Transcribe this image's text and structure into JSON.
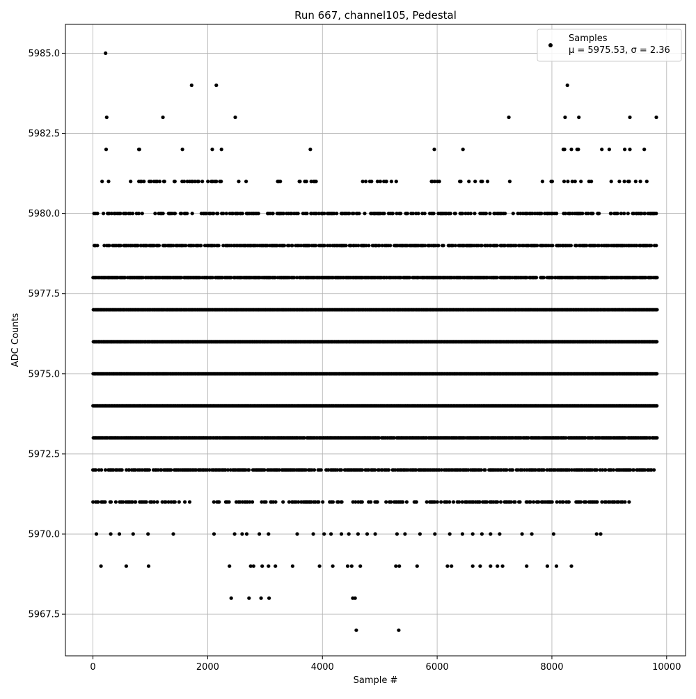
{
  "chart_data": {
    "type": "scatter",
    "title": "Run 667, channel105, Pedestal",
    "xlabel": "Sample #",
    "ylabel": "ADC Counts",
    "xlim": [
      -480,
      10330
    ],
    "ylim": [
      5966.2,
      5985.9
    ],
    "xticks": [
      0,
      2000,
      4000,
      6000,
      8000,
      10000
    ],
    "xtick_labels": [
      "0",
      "2000",
      "4000",
      "6000",
      "8000",
      "10000"
    ],
    "yticks": [
      5967.5,
      5970.0,
      5972.5,
      5975.0,
      5977.5,
      5980.0,
      5982.5,
      5985.0
    ],
    "ytick_labels": [
      "5967.5",
      "5970.0",
      "5972.5",
      "5975.0",
      "5977.5",
      "5980.0",
      "5982.5",
      "5985.0"
    ],
    "grid": true,
    "legend": {
      "placement": "upper-right",
      "series_label": "Samples",
      "stats_text": "μ = 5975.53, σ = 2.36"
    },
    "series": [
      {
        "name": "Samples",
        "color": "#000000",
        "n_samples": 9830,
        "mean": 5975.53,
        "sigma": 2.36,
        "points": [
          [
            220,
            5985
          ],
          [
            1720,
            5984
          ],
          [
            2150,
            5984
          ],
          [
            8270,
            5984
          ],
          [
            240,
            5983
          ],
          [
            1220,
            5983
          ],
          [
            2480,
            5983
          ],
          [
            7250,
            5983
          ],
          [
            8230,
            5983
          ],
          [
            8470,
            5983
          ],
          [
            9360,
            5983
          ],
          [
            9820,
            5983
          ],
          [
            230,
            5982
          ],
          [
            800,
            5982
          ],
          [
            810,
            5982
          ],
          [
            1560,
            5982
          ],
          [
            2080,
            5982
          ],
          [
            2240,
            5982
          ],
          [
            3790,
            5982
          ],
          [
            5950,
            5982
          ],
          [
            6450,
            5982
          ],
          [
            8200,
            5982
          ],
          [
            8220,
            5982
          ],
          [
            8340,
            5982
          ],
          [
            8440,
            5982
          ],
          [
            8460,
            5982
          ],
          [
            8870,
            5982
          ],
          [
            9000,
            5982
          ],
          [
            9270,
            5982
          ],
          [
            9360,
            5982
          ],
          [
            9610,
            5982
          ],
          [
            4570,
            5968
          ],
          [
            2410,
            5968
          ],
          [
            2720,
            5968
          ],
          [
            2930,
            5968
          ],
          [
            3070,
            5968
          ],
          [
            4530,
            5968
          ],
          [
            4590,
            5967
          ],
          [
            5330,
            5967
          ],
          [
            140,
            5969
          ],
          [
            580,
            5969
          ],
          [
            970,
            5969
          ],
          [
            2380,
            5969
          ],
          [
            2750,
            5969
          ],
          [
            2800,
            5969
          ],
          [
            2950,
            5969
          ],
          [
            3060,
            5969
          ],
          [
            3180,
            5969
          ],
          [
            3480,
            5969
          ],
          [
            3950,
            5969
          ],
          [
            4180,
            5969
          ],
          [
            4440,
            5969
          ],
          [
            4510,
            5969
          ],
          [
            4660,
            5969
          ],
          [
            5280,
            5969
          ],
          [
            5340,
            5969
          ],
          [
            5650,
            5969
          ],
          [
            6180,
            5969
          ],
          [
            6250,
            5969
          ],
          [
            6620,
            5969
          ],
          [
            6750,
            5969
          ],
          [
            6930,
            5969
          ],
          [
            7050,
            5969
          ],
          [
            7140,
            5969
          ],
          [
            7560,
            5969
          ],
          [
            7920,
            5969
          ],
          [
            8080,
            5969
          ],
          [
            8340,
            5969
          ],
          [
            60,
            5970
          ],
          [
            310,
            5970
          ],
          [
            460,
            5970
          ],
          [
            700,
            5970
          ],
          [
            960,
            5970
          ],
          [
            1400,
            5970
          ],
          [
            2110,
            5970
          ],
          [
            2470,
            5970
          ],
          [
            2600,
            5970
          ],
          [
            2680,
            5970
          ],
          [
            2900,
            5970
          ],
          [
            3060,
            5970
          ],
          [
            3560,
            5970
          ],
          [
            3840,
            5970
          ],
          [
            4030,
            5970
          ],
          [
            4150,
            5970
          ],
          [
            4330,
            5970
          ],
          [
            4460,
            5970
          ],
          [
            4620,
            5970
          ],
          [
            4780,
            5970
          ],
          [
            4920,
            5970
          ],
          [
            5300,
            5970
          ],
          [
            5440,
            5970
          ],
          [
            5700,
            5970
          ],
          [
            5960,
            5970
          ],
          [
            6220,
            5970
          ],
          [
            6440,
            5970
          ],
          [
            6620,
            5970
          ],
          [
            6780,
            5970
          ],
          [
            6930,
            5970
          ],
          [
            7090,
            5970
          ],
          [
            7480,
            5970
          ],
          [
            7650,
            5970
          ],
          [
            8030,
            5970
          ],
          [
            8780,
            5970
          ],
          [
            8850,
            5970
          ]
        ],
        "bands": [
          {
            "level": 5981,
            "ranges": [
              [
                140,
                340
              ],
              [
                600,
                1300
              ],
              [
                1400,
                2250
              ],
              [
                2480,
                2680
              ],
              [
                3150,
                3350
              ],
              [
                3580,
                3990
              ],
              [
                4680,
                5320
              ],
              [
                5810,
                6080
              ],
              [
                6380,
                6900
              ],
              [
                7160,
                7380
              ],
              [
                7760,
                9820
              ]
            ],
            "density": 0.2
          },
          {
            "level": 5980,
            "ranges": [
              [
                0,
                9830
              ]
            ],
            "density": 0.4
          },
          {
            "level": 5979,
            "ranges": [
              [
                0,
                9830
              ]
            ],
            "density": 0.55
          },
          {
            "level": 5978,
            "ranges": [
              [
                0,
                9830
              ]
            ],
            "density": 0.8
          },
          {
            "level": 5977,
            "ranges": [
              [
                0,
                9830
              ]
            ],
            "density": 1.0
          },
          {
            "level": 5976,
            "ranges": [
              [
                0,
                9830
              ]
            ],
            "density": 1.0
          },
          {
            "level": 5975,
            "ranges": [
              [
                0,
                9830
              ]
            ],
            "density": 1.0
          },
          {
            "level": 5974,
            "ranges": [
              [
                0,
                9830
              ]
            ],
            "density": 1.0
          },
          {
            "level": 5973,
            "ranges": [
              [
                0,
                9830
              ]
            ],
            "density": 0.9
          },
          {
            "level": 5972,
            "ranges": [
              [
                0,
                9800
              ]
            ],
            "density": 0.6
          },
          {
            "level": 5971,
            "ranges": [
              [
                0,
                1700
              ],
              [
                2100,
                3300
              ],
              [
                3300,
                5700
              ],
              [
                5800,
                9350
              ]
            ],
            "density": 0.35
          }
        ]
      }
    ]
  }
}
